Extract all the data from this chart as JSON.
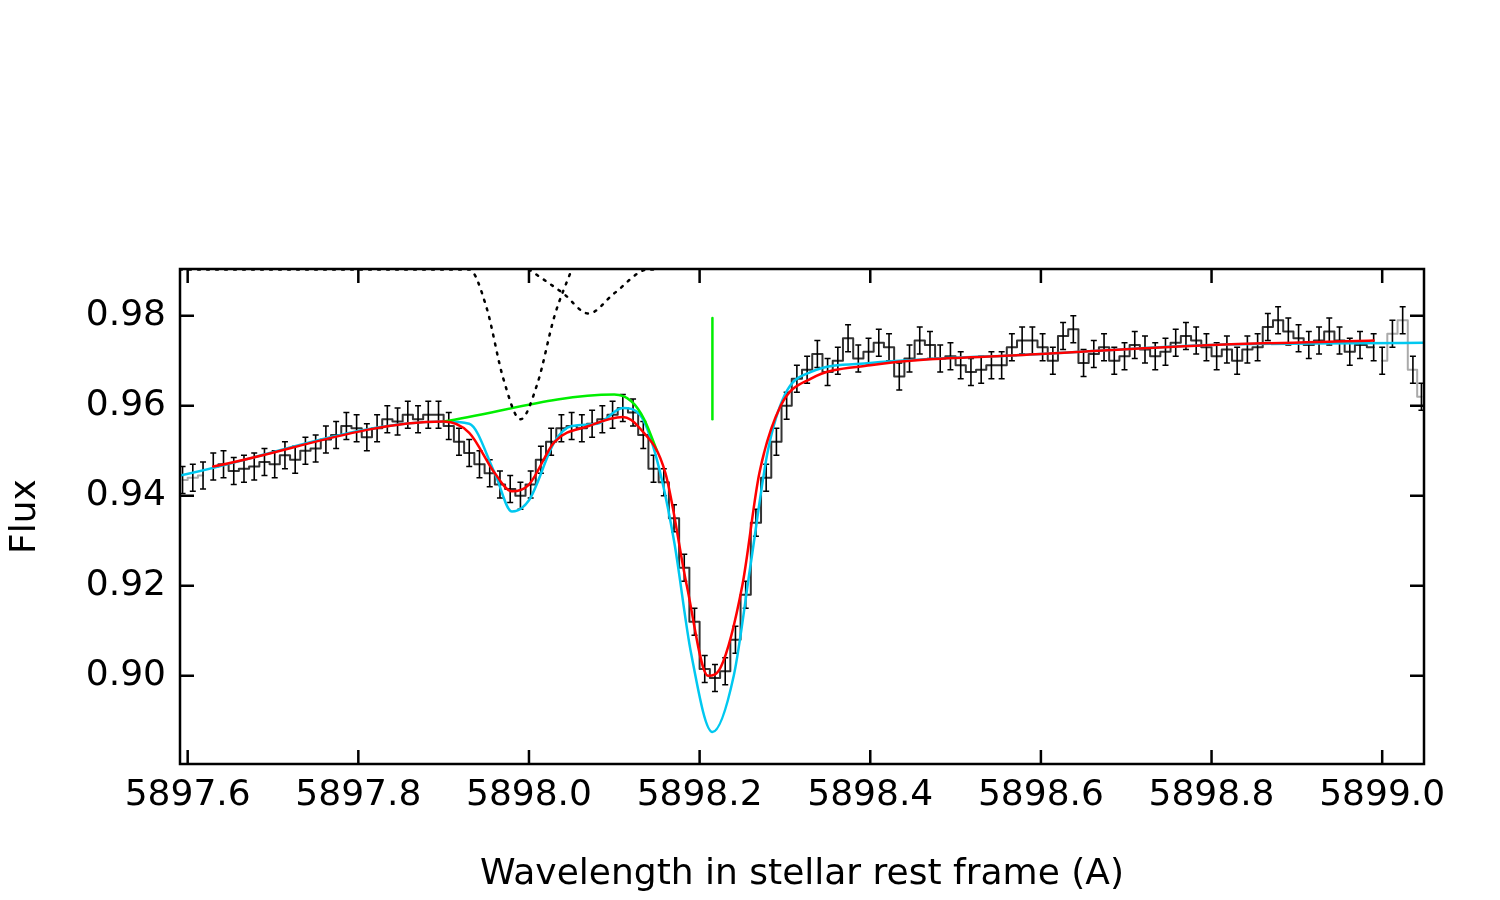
{
  "chart_data": {
    "type": "line",
    "xlabel": "Wavelength in stellar rest frame (A)",
    "ylabel": "Flux",
    "xlim": [
      5897.591,
      5899.049
    ],
    "ylim": [
      0.8804,
      0.9904
    ],
    "xticks": [
      5897.6,
      5897.8,
      {
        "value": 5898,
        "label": "5898.0"
      },
      5898.2,
      5898.4,
      5898.6,
      5898.8,
      {
        "value": 5899,
        "label": "5899.0"
      }
    ],
    "yticks": [
      {
        "value": 0.9,
        "label": "0.90"
      },
      {
        "value": 0.92,
        "label": "0.92"
      },
      {
        "value": 0.94,
        "label": "0.94"
      },
      {
        "value": 0.96,
        "label": "0.96"
      },
      {
        "value": 0.98,
        "label": "0.98"
      }
    ],
    "grid": false,
    "legend": false,
    "series": [
      {
        "type": "step",
        "color": "#aaaaaa",
        "x": [
          5897.594,
          5897.606,
          5897.618
        ],
        "values": [
          0.9435,
          0.944,
          0.9445
        ],
        "errors": [
          0.003,
          0.003,
          0.003
        ]
      },
      {
        "type": "step",
        "color": "#aaaaaa",
        "x": [
          5899.0,
          5899.012,
          5899.024,
          5899.036,
          5899.046
        ],
        "values": [
          0.97,
          0.976,
          0.979,
          0.968,
          0.962
        ],
        "errors": [
          0.003,
          0.003,
          0.003,
          0.003,
          0.003
        ]
      },
      {
        "type": "step",
        "color": "#333333",
        "x": [
          5897.63,
          5897.642,
          5897.654,
          5897.666,
          5897.678,
          5897.69,
          5897.702,
          5897.714,
          5897.726,
          5897.738,
          5897.75,
          5897.762,
          5897.774,
          5897.786,
          5897.798,
          5897.81,
          5897.822,
          5897.834,
          5897.846,
          5897.858,
          5897.87,
          5897.882,
          5897.894,
          5897.906,
          5897.918,
          5897.93,
          5897.942,
          5897.954,
          5897.966,
          5897.978,
          5897.99,
          5898.002,
          5898.014,
          5898.026,
          5898.038,
          5898.05,
          5898.062,
          5898.074,
          5898.086,
          5898.098,
          5898.11,
          5898.122,
          5898.134,
          5898.146,
          5898.158,
          5898.17,
          5898.182,
          5898.194,
          5898.206,
          5898.218,
          5898.23,
          5898.242,
          5898.254,
          5898.266,
          5898.278,
          5898.29,
          5898.302,
          5898.314,
          5898.326,
          5898.338,
          5898.35,
          5898.362,
          5898.374,
          5898.386,
          5898.398,
          5898.41,
          5898.422,
          5898.434,
          5898.446,
          5898.458,
          5898.47,
          5898.482,
          5898.494,
          5898.506,
          5898.518,
          5898.53,
          5898.542,
          5898.554,
          5898.566,
          5898.578,
          5898.59,
          5898.602,
          5898.614,
          5898.626,
          5898.638,
          5898.65,
          5898.662,
          5898.674,
          5898.686,
          5898.698,
          5898.71,
          5898.722,
          5898.734,
          5898.746,
          5898.758,
          5898.77,
          5898.782,
          5898.794,
          5898.806,
          5898.818,
          5898.83,
          5898.842,
          5898.854,
          5898.866,
          5898.878,
          5898.89,
          5898.902,
          5898.914,
          5898.926,
          5898.938,
          5898.95,
          5898.962,
          5898.974,
          5898.99
        ],
        "values": [
          0.9465,
          0.947,
          0.9455,
          0.946,
          0.9465,
          0.9475,
          0.947,
          0.949,
          0.948,
          0.95,
          0.9505,
          0.9525,
          0.9535,
          0.9555,
          0.955,
          0.953,
          0.955,
          0.957,
          0.9565,
          0.958,
          0.957,
          0.958,
          0.958,
          0.9555,
          0.952,
          0.9495,
          0.947,
          0.945,
          0.9425,
          0.9415,
          0.94,
          0.9425,
          0.948,
          0.952,
          0.955,
          0.9555,
          0.955,
          0.956,
          0.957,
          0.958,
          0.9595,
          0.9585,
          0.9535,
          0.946,
          0.943,
          0.935,
          0.924,
          0.912,
          0.9015,
          0.8995,
          0.901,
          0.908,
          0.918,
          0.934,
          0.944,
          0.952,
          0.96,
          0.966,
          0.968,
          0.9715,
          0.9675,
          0.97,
          0.975,
          0.9705,
          0.972,
          0.974,
          0.973,
          0.9665,
          0.9705,
          0.9745,
          0.9735,
          0.9705,
          0.971,
          0.969,
          0.9675,
          0.968,
          0.969,
          0.969,
          0.973,
          0.9745,
          0.9745,
          0.973,
          0.97,
          0.9755,
          0.977,
          0.9695,
          0.9715,
          0.973,
          0.97,
          0.971,
          0.9735,
          0.9725,
          0.971,
          0.972,
          0.974,
          0.9755,
          0.9745,
          0.973,
          0.971,
          0.9725,
          0.97,
          0.9725,
          0.973,
          0.9775,
          0.979,
          0.9765,
          0.975,
          0.9735,
          0.9745,
          0.9765,
          0.9745,
          0.972,
          0.9735,
          0.973
        ],
        "errors": [
          0.003,
          0.003,
          0.003,
          0.003,
          0.003,
          0.003,
          0.003,
          0.003,
          0.003,
          0.003,
          0.003,
          0.003,
          0.003,
          0.003,
          0.003,
          0.003,
          0.003,
          0.003,
          0.003,
          0.003,
          0.003,
          0.003,
          0.003,
          0.003,
          0.003,
          0.003,
          0.003,
          0.003,
          0.003,
          0.003,
          0.003,
          0.003,
          0.003,
          0.003,
          0.003,
          0.003,
          0.003,
          0.003,
          0.003,
          0.003,
          0.003,
          0.003,
          0.003,
          0.003,
          0.003,
          0.003,
          0.003,
          0.003,
          0.003,
          0.003,
          0.003,
          0.003,
          0.003,
          0.003,
          0.003,
          0.003,
          0.003,
          0.003,
          0.003,
          0.003,
          0.003,
          0.003,
          0.003,
          0.003,
          0.003,
          0.003,
          0.003,
          0.003,
          0.003,
          0.003,
          0.003,
          0.003,
          0.003,
          0.003,
          0.003,
          0.003,
          0.003,
          0.003,
          0.003,
          0.003,
          0.003,
          0.003,
          0.003,
          0.003,
          0.003,
          0.003,
          0.003,
          0.003,
          0.003,
          0.003,
          0.003,
          0.003,
          0.003,
          0.003,
          0.003,
          0.003,
          0.003,
          0.003,
          0.003,
          0.003,
          0.003,
          0.003,
          0.003,
          0.003,
          0.003,
          0.003,
          0.003,
          0.003,
          0.003,
          0.003,
          0.003,
          0.003,
          0.003,
          0.003
        ]
      },
      {
        "type": "line",
        "color": "#00c8f0",
        "x": [
          5897.591,
          5897.9,
          5897.93,
          5897.96,
          5897.98,
          5898.0,
          5898.03,
          5898.05,
          5898.08,
          5898.11,
          5898.13,
          5898.15,
          5898.17,
          5898.19,
          5898.215,
          5898.24,
          5898.26,
          5898.28,
          5898.3,
          5898.33,
          5898.4,
          5898.6,
          5898.8,
          5899.049
        ],
        "values": [
          0.9445,
          0.9565,
          0.956,
          0.945,
          0.9365,
          0.939,
          0.952,
          0.9555,
          0.956,
          0.9595,
          0.958,
          0.948,
          0.93,
          0.905,
          0.8875,
          0.9,
          0.925,
          0.95,
          0.9625,
          0.9675,
          0.9695,
          0.9715,
          0.9735,
          0.974
        ]
      },
      {
        "type": "line",
        "color": "#00ee00",
        "x": [
          5897.9,
          5898.1,
          5898.12,
          5898.135,
          5898.15
        ],
        "values": [
          0.9565,
          0.9625,
          0.961,
          0.957,
          0.95
        ]
      },
      {
        "type": "line",
        "color": "#ff0000",
        "x": [
          5897.63,
          5897.9,
          5897.93,
          5897.96,
          5897.98,
          5898.0,
          5898.03,
          5898.07,
          5898.11,
          5898.13,
          5898.16,
          5898.185,
          5898.21,
          5898.225,
          5898.25,
          5898.27,
          5898.295,
          5898.33,
          5898.4,
          5898.6,
          5898.8,
          5898.99
        ],
        "values": [
          0.9465,
          0.9565,
          0.954,
          0.945,
          0.941,
          0.9425,
          0.952,
          0.9555,
          0.9575,
          0.955,
          0.945,
          0.92,
          0.9,
          0.902,
          0.92,
          0.945,
          0.96,
          0.966,
          0.969,
          0.9715,
          0.9735,
          0.9745
        ]
      },
      {
        "type": "line",
        "color": "#00ee00",
        "x": [
          5898.215,
          5898.215
        ],
        "values": [
          0.957,
          0.9795
        ]
      },
      {
        "type": "line",
        "color": "#000000",
        "line_style": "dotted",
        "x": [
          5897.591,
          5897.93,
          5897.95,
          5897.97,
          5897.99,
          5898.01,
          5898.03,
          5898.05
        ],
        "values": [
          0.9903,
          0.9903,
          0.982,
          0.966,
          0.957,
          0.965,
          0.98,
          0.9903
        ]
      },
      {
        "type": "line",
        "color": "#000000",
        "line_style": "dotted",
        "x": [
          5898.0,
          5898.04,
          5898.07,
          5898.1,
          5898.14,
          5898.15
        ],
        "values": [
          0.9903,
          0.985,
          0.9805,
          0.985,
          0.9903,
          0.9903
        ]
      }
    ]
  }
}
